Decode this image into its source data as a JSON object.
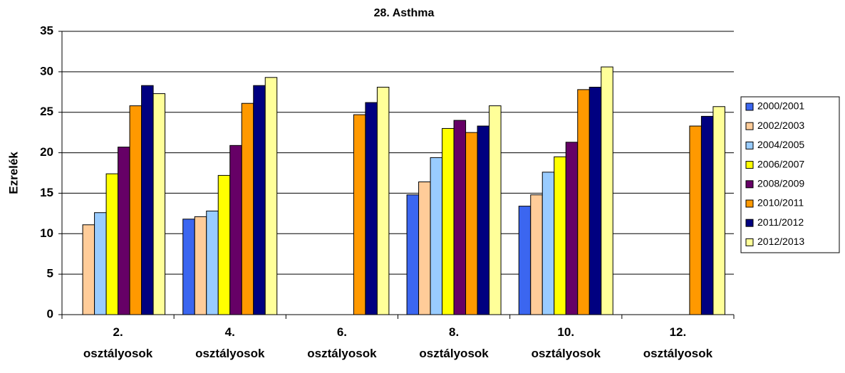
{
  "chart_data": {
    "type": "bar",
    "title": "28. Asthma",
    "y_label": "Ezrelék",
    "categories": [
      "2. osztályosok",
      "4. osztályosok",
      "6. osztályosok",
      "8. osztályosok",
      "10. osztályosok",
      "12. osztályosok"
    ],
    "series": [
      {
        "name": "2000/2001",
        "color": "#3b66f0",
        "values": [
          null,
          11.8,
          null,
          14.8,
          13.4,
          null
        ]
      },
      {
        "name": "2002/2003",
        "color": "#ffcc99",
        "values": [
          11.1,
          12.1,
          null,
          16.4,
          14.8,
          null
        ]
      },
      {
        "name": "2004/2005",
        "color": "#99ccff",
        "values": [
          12.6,
          12.8,
          null,
          19.4,
          17.6,
          null
        ]
      },
      {
        "name": "2006/2007",
        "color": "#ffff00",
        "values": [
          17.4,
          17.2,
          null,
          23.0,
          19.5,
          null
        ]
      },
      {
        "name": "2008/2009",
        "color": "#660066",
        "values": [
          20.7,
          20.9,
          null,
          24.0,
          21.3,
          null
        ]
      },
      {
        "name": "2010/2011",
        "color": "#ff9900",
        "values": [
          25.8,
          26.1,
          24.7,
          22.5,
          27.8,
          23.3
        ]
      },
      {
        "name": "2011/2012",
        "color": "#000080",
        "values": [
          28.3,
          28.3,
          26.2,
          23.3,
          28.1,
          24.5
        ]
      },
      {
        "name": "2012/2013",
        "color": "#ffff99",
        "values": [
          27.3,
          29.3,
          28.1,
          25.8,
          30.6,
          25.7
        ]
      }
    ],
    "ylim": [
      0,
      35
    ],
    "yticks": [
      0,
      5,
      10,
      15,
      20,
      25,
      30,
      35
    ],
    "grid": true,
    "legend": "right"
  }
}
